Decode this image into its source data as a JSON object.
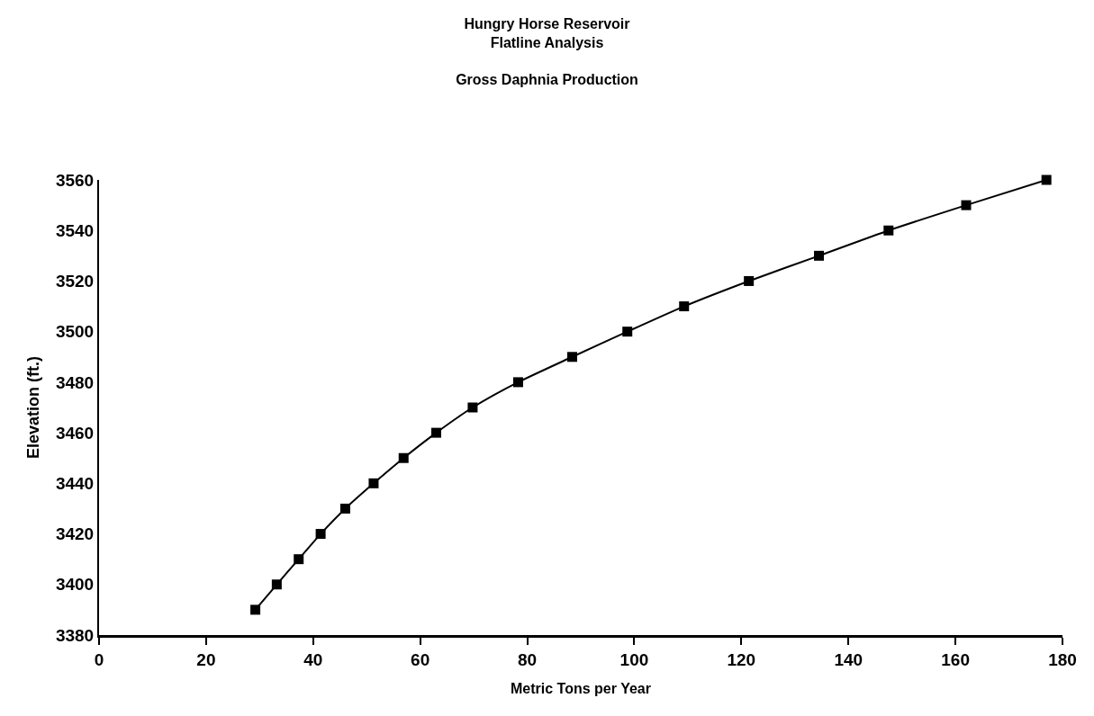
{
  "chart_data": {
    "type": "line",
    "title": "Hungry Horse Reservoir\nFlatline Analysis",
    "subtitle": "Gross Daphnia Production",
    "xlabel": "Metric Tons per Year",
    "ylabel": "Elevation (ft.)",
    "x": [
      29.2,
      33.2,
      37.3,
      41.4,
      46.0,
      51.3,
      56.9,
      63.0,
      69.8,
      78.3,
      88.4,
      98.7,
      109.3,
      121.4,
      134.5,
      147.5,
      162.0,
      177.0
    ],
    "series": [
      {
        "color": "#000000",
        "values": [
          3390,
          3400,
          3410,
          3420,
          3430,
          3440,
          3450,
          3460,
          3470,
          3480,
          3490,
          3500,
          3510,
          3520,
          3530,
          3540,
          3550,
          3560
        ]
      }
    ],
    "xlim": [
      0,
      180
    ],
    "xticks": [
      0,
      20,
      40,
      60,
      80,
      100,
      120,
      140,
      160,
      180
    ],
    "ylim": [
      3380,
      3560
    ],
    "yticks": [
      3380,
      3400,
      3420,
      3440,
      3460,
      3480,
      3500,
      3520,
      3540,
      3560
    ],
    "marker": "square",
    "line_style": "solid"
  }
}
